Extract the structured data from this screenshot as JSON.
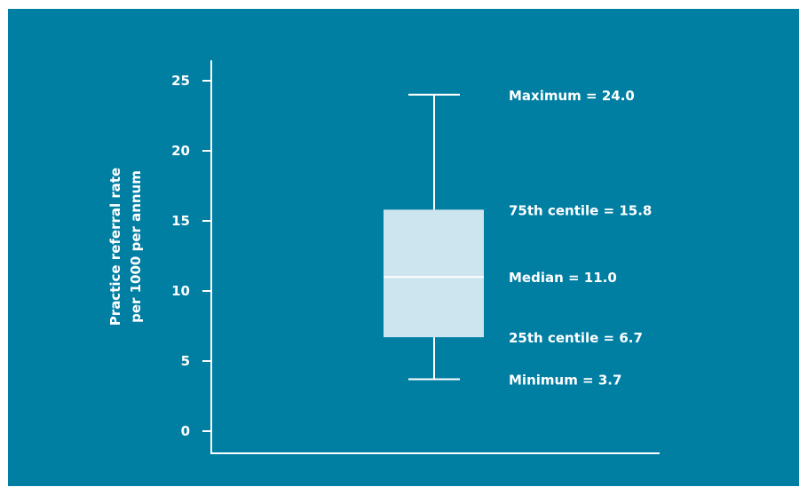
{
  "chart_data": {
    "type": "boxplot",
    "ylabel_lines": [
      "Practice referral rate",
      "per 1000 per annum"
    ],
    "ylim": [
      0,
      26
    ],
    "yticks": [
      0,
      5,
      10,
      15,
      20,
      25
    ],
    "yticks_labels": [
      "0",
      "5",
      "10",
      "15",
      "20",
      "25"
    ],
    "grid": false,
    "box": {
      "minimum": 3.7,
      "q1": 6.7,
      "median": 11.0,
      "q3": 15.8,
      "maximum": 24.0
    },
    "annotations": {
      "maximum": "Maximum = 24.0",
      "q3": "75th centile = 15.8",
      "median": "Median = 11.0",
      "q1": "25th centile = 6.7",
      "minimum": "Minimum = 3.7"
    },
    "colors": {
      "background": "#007fa3",
      "box_fill": "#cde5ee",
      "lines": "#ffffff"
    }
  }
}
